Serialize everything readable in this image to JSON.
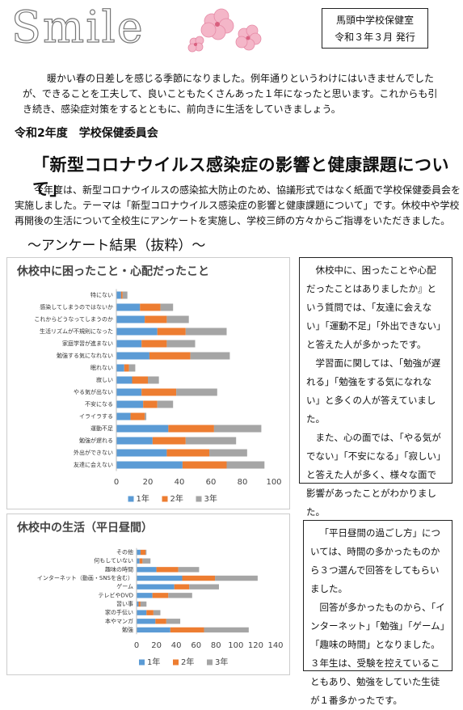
{
  "header": {
    "logo": "Smile",
    "school": "馬頭中学校保健室",
    "date": "令和３年３月 発行"
  },
  "intro": "暖かい春の日差しを感じる季節になりました。例年通りというわけにはいきませんでしたが、できることを工夫して、良いこともたくさんあった１年になったと思います。これからも引き続き、感染症対策をするとともに、前向きに生活をしていきましょう。",
  "section_title": "令和2年度　学校保健委員会",
  "headline": "「新型コロナウイルス感染症の影響と健康課題について」",
  "body": "今年度は、新型コロナウイルスの感染拡大防止のため、協議形式ではなく紙面で学校保健委員会を実施しました。テーマは「新型コロナウイルス感染症の影響と健康課題について」です。休校中や学校再開後の生活について全校生にアンケートを実施し、学校三師の方々からご指導をいただきました。",
  "survey_heading": "～アンケート結果（抜粋）～",
  "chart_data": [
    {
      "type": "stacked-bar-horizontal",
      "title": "休校中に困ったこと・心配だったこと",
      "categories": [
        "特にない",
        "感染してしまうのではないか",
        "これからどうなってしまうのか",
        "生活リズムが不規則になった",
        "家庭学習が進まない",
        "勉強する気になれない",
        "眠れない",
        "寂しい",
        "やる気が出ない",
        "不安になる",
        "イライラする",
        "運動不足",
        "勉強が遅れる",
        "外出ができない",
        "友達に会えない"
      ],
      "series": [
        {
          "name": "1年",
          "color": "#5b9bd5",
          "values": [
            3,
            15,
            18,
            26,
            16,
            21,
            5,
            10,
            16,
            17,
            9,
            33,
            23,
            32,
            42
          ]
        },
        {
          "name": "2年",
          "color": "#ed7d31",
          "values": [
            1,
            13,
            14,
            18,
            16,
            26,
            3,
            10,
            22,
            9,
            9,
            29,
            21,
            27,
            28
          ]
        },
        {
          "name": "3年",
          "color": "#a5a5a5",
          "values": [
            3,
            8,
            14,
            26,
            18,
            25,
            4,
            7,
            26,
            10,
            1,
            30,
            32,
            24,
            24
          ]
        }
      ],
      "xlim": [
        0,
        100
      ],
      "xticks": [
        0,
        20,
        40,
        60,
        80,
        100
      ],
      "grid": false,
      "legend": "bottom"
    },
    {
      "type": "stacked-bar-horizontal",
      "title": "休校中の生活（平日昼間）",
      "categories": [
        "その他",
        "何もしていない",
        "趣味の時間",
        "インターネット（動画・SNSを含む）",
        "ゲーム",
        "テレビやDVD",
        "習い事",
        "家の手伝い",
        "本やマンガ",
        "勉強"
      ],
      "series": [
        {
          "name": "1年",
          "color": "#5b9bd5",
          "values": [
            4,
            3,
            20,
            46,
            38,
            16,
            2,
            10,
            19,
            34
          ]
        },
        {
          "name": "2年",
          "color": "#ed7d31",
          "values": [
            5,
            3,
            22,
            33,
            15,
            16,
            2,
            7,
            11,
            34
          ]
        },
        {
          "name": "3年",
          "color": "#a5a5a5",
          "values": [
            1,
            8,
            21,
            43,
            30,
            24,
            6,
            7,
            14,
            45
          ]
        }
      ],
      "xlim": [
        0,
        140
      ],
      "xticks": [
        0,
        20,
        40,
        60,
        80,
        100,
        120,
        140
      ],
      "grid": false,
      "legend": "bottom"
    }
  ],
  "notes": [
    [
      "休校中に、困ったことや心配だったことはありましたか』という質問では、「友達に会えない」「運動不足」「外出できない」と答えた人が多かったです。",
      "学習面に関しては、「勉強が遅れる」「勉強をする気になれない」と多くの人が答えていました。",
      "また、心の面では、「やる気がでない」「不安になる」「寂しい」と答えた人が多く、様々な面で影響があったことがわかりました。"
    ],
    [
      "「平日昼間の過ごし方」については、時間の多かったものから３つ選んで回答をしてもらいました。",
      "回答が多かったものから、「インターネット」「勉強」「ゲーム」「趣味の時間」となりました。３年生は、受験を控えていることもあり、勉強をしていた生徒が１番多かったです。"
    ]
  ]
}
